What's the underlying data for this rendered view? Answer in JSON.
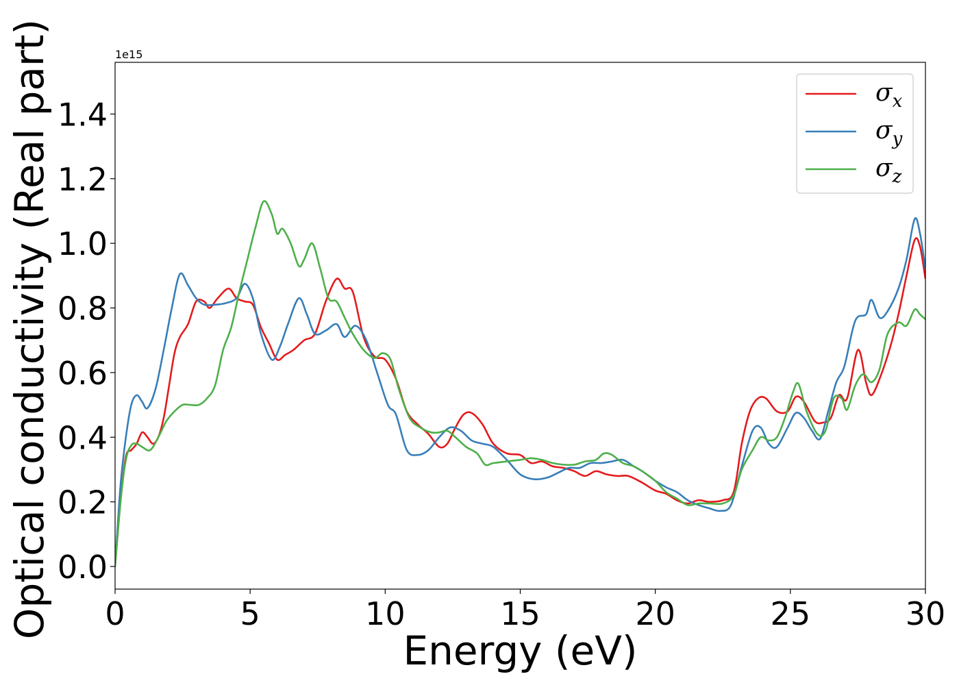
{
  "chart_data": {
    "type": "line",
    "xlabel": "Energy (eV)",
    "ylabel": "Optical conductivity (Real part)",
    "y_offset_text": "1e15",
    "y_scale": 1000000000000000.0,
    "xlim": [
      0,
      30
    ],
    "ylim": [
      -0.07,
      1.56
    ],
    "x_ticks": [
      0,
      5,
      10,
      15,
      20,
      25,
      30
    ],
    "x_tick_labels": [
      "0",
      "5",
      "10",
      "15",
      "20",
      "25",
      "30"
    ],
    "y_ticks": [
      0.0,
      0.2,
      0.4,
      0.6,
      0.8,
      1.0,
      1.2,
      1.4
    ],
    "y_tick_labels": [
      "0.0",
      "0.2",
      "0.4",
      "0.6",
      "0.8",
      "1.0",
      "1.2",
      "1.4"
    ],
    "grid": false,
    "legend_position": "top-right",
    "series": [
      {
        "name": "x",
        "color": "#e41a1c",
        "points": [
          [
            0,
            0.0
          ],
          [
            0.2,
            0.2
          ],
          [
            0.4,
            0.34
          ],
          [
            0.6,
            0.36
          ],
          [
            0.8,
            0.38
          ],
          [
            1.0,
            0.415
          ],
          [
            1.2,
            0.4
          ],
          [
            1.4,
            0.38
          ],
          [
            1.6,
            0.4
          ],
          [
            1.8,
            0.46
          ],
          [
            2.0,
            0.56
          ],
          [
            2.2,
            0.66
          ],
          [
            2.4,
            0.71
          ],
          [
            2.7,
            0.75
          ],
          [
            3.0,
            0.82
          ],
          [
            3.3,
            0.82
          ],
          [
            3.5,
            0.8
          ],
          [
            3.8,
            0.83
          ],
          [
            4.2,
            0.86
          ],
          [
            4.5,
            0.83
          ],
          [
            4.8,
            0.82
          ],
          [
            5.1,
            0.81
          ],
          [
            5.4,
            0.74
          ],
          [
            5.7,
            0.69
          ],
          [
            6.0,
            0.64
          ],
          [
            6.3,
            0.655
          ],
          [
            6.6,
            0.67
          ],
          [
            7.0,
            0.7
          ],
          [
            7.4,
            0.72
          ],
          [
            7.8,
            0.82
          ],
          [
            8.2,
            0.89
          ],
          [
            8.5,
            0.86
          ],
          [
            8.8,
            0.85
          ],
          [
            9.2,
            0.71
          ],
          [
            9.6,
            0.65
          ],
          [
            10.0,
            0.64
          ],
          [
            10.4,
            0.58
          ],
          [
            10.8,
            0.48
          ],
          [
            11.2,
            0.44
          ],
          [
            11.6,
            0.41
          ],
          [
            12.0,
            0.37
          ],
          [
            12.3,
            0.38
          ],
          [
            12.6,
            0.43
          ],
          [
            12.9,
            0.47
          ],
          [
            13.2,
            0.475
          ],
          [
            13.6,
            0.44
          ],
          [
            14.0,
            0.38
          ],
          [
            14.5,
            0.35
          ],
          [
            15.0,
            0.345
          ],
          [
            15.4,
            0.32
          ],
          [
            15.8,
            0.325
          ],
          [
            16.2,
            0.31
          ],
          [
            16.6,
            0.305
          ],
          [
            17.0,
            0.295
          ],
          [
            17.4,
            0.28
          ],
          [
            17.8,
            0.295
          ],
          [
            18.2,
            0.285
          ],
          [
            18.6,
            0.28
          ],
          [
            19.0,
            0.28
          ],
          [
            19.5,
            0.26
          ],
          [
            20.0,
            0.235
          ],
          [
            20.4,
            0.225
          ],
          [
            20.8,
            0.205
          ],
          [
            21.2,
            0.195
          ],
          [
            21.6,
            0.205
          ],
          [
            22.0,
            0.2
          ],
          [
            22.5,
            0.205
          ],
          [
            22.9,
            0.23
          ],
          [
            23.2,
            0.38
          ],
          [
            23.5,
            0.48
          ],
          [
            23.8,
            0.52
          ],
          [
            24.1,
            0.52
          ],
          [
            24.5,
            0.48
          ],
          [
            24.9,
            0.48
          ],
          [
            25.2,
            0.525
          ],
          [
            25.5,
            0.51
          ],
          [
            25.9,
            0.45
          ],
          [
            26.2,
            0.445
          ],
          [
            26.5,
            0.46
          ],
          [
            26.8,
            0.53
          ],
          [
            27.1,
            0.52
          ],
          [
            27.5,
            0.67
          ],
          [
            27.8,
            0.57
          ],
          [
            28.0,
            0.53
          ],
          [
            28.3,
            0.58
          ],
          [
            28.7,
            0.68
          ],
          [
            29.0,
            0.78
          ],
          [
            29.3,
            0.9
          ],
          [
            29.6,
            1.01
          ],
          [
            29.8,
            0.99
          ],
          [
            30.0,
            0.89
          ]
        ]
      },
      {
        "name": "y",
        "color": "#377eb8",
        "points": [
          [
            0,
            0.0
          ],
          [
            0.2,
            0.25
          ],
          [
            0.4,
            0.4
          ],
          [
            0.6,
            0.5
          ],
          [
            0.8,
            0.53
          ],
          [
            1.0,
            0.51
          ],
          [
            1.2,
            0.49
          ],
          [
            1.5,
            0.55
          ],
          [
            1.8,
            0.67
          ],
          [
            2.1,
            0.8
          ],
          [
            2.4,
            0.905
          ],
          [
            2.7,
            0.87
          ],
          [
            3.0,
            0.83
          ],
          [
            3.3,
            0.81
          ],
          [
            3.7,
            0.81
          ],
          [
            4.1,
            0.815
          ],
          [
            4.5,
            0.83
          ],
          [
            4.8,
            0.875
          ],
          [
            5.1,
            0.83
          ],
          [
            5.4,
            0.72
          ],
          [
            5.8,
            0.64
          ],
          [
            6.1,
            0.68
          ],
          [
            6.4,
            0.75
          ],
          [
            6.8,
            0.83
          ],
          [
            7.1,
            0.78
          ],
          [
            7.4,
            0.72
          ],
          [
            7.8,
            0.73
          ],
          [
            8.2,
            0.75
          ],
          [
            8.5,
            0.71
          ],
          [
            8.9,
            0.745
          ],
          [
            9.3,
            0.7
          ],
          [
            9.7,
            0.6
          ],
          [
            10.1,
            0.5
          ],
          [
            10.4,
            0.47
          ],
          [
            10.8,
            0.36
          ],
          [
            11.2,
            0.345
          ],
          [
            11.6,
            0.36
          ],
          [
            12.0,
            0.4
          ],
          [
            12.4,
            0.43
          ],
          [
            12.8,
            0.42
          ],
          [
            13.2,
            0.39
          ],
          [
            13.6,
            0.38
          ],
          [
            14.0,
            0.37
          ],
          [
            14.5,
            0.33
          ],
          [
            15.0,
            0.285
          ],
          [
            15.5,
            0.27
          ],
          [
            16.0,
            0.275
          ],
          [
            16.4,
            0.29
          ],
          [
            16.8,
            0.305
          ],
          [
            17.2,
            0.305
          ],
          [
            17.6,
            0.32
          ],
          [
            18.0,
            0.32
          ],
          [
            18.4,
            0.325
          ],
          [
            18.8,
            0.33
          ],
          [
            19.2,
            0.31
          ],
          [
            19.6,
            0.29
          ],
          [
            20.0,
            0.265
          ],
          [
            20.4,
            0.245
          ],
          [
            20.8,
            0.23
          ],
          [
            21.2,
            0.205
          ],
          [
            21.6,
            0.19
          ],
          [
            22.0,
            0.18
          ],
          [
            22.4,
            0.172
          ],
          [
            22.8,
            0.19
          ],
          [
            23.2,
            0.31
          ],
          [
            23.6,
            0.42
          ],
          [
            23.9,
            0.43
          ],
          [
            24.2,
            0.38
          ],
          [
            24.5,
            0.37
          ],
          [
            24.9,
            0.43
          ],
          [
            25.2,
            0.475
          ],
          [
            25.5,
            0.46
          ],
          [
            25.8,
            0.42
          ],
          [
            26.1,
            0.395
          ],
          [
            26.4,
            0.48
          ],
          [
            26.7,
            0.57
          ],
          [
            27.0,
            0.62
          ],
          [
            27.4,
            0.76
          ],
          [
            27.8,
            0.78
          ],
          [
            28.0,
            0.825
          ],
          [
            28.3,
            0.77
          ],
          [
            28.6,
            0.79
          ],
          [
            29.0,
            0.86
          ],
          [
            29.3,
            0.95
          ],
          [
            29.6,
            1.075
          ],
          [
            29.8,
            1.03
          ],
          [
            30.0,
            0.92
          ]
        ]
      },
      {
        "name": "z",
        "color": "#4daf4a",
        "points": [
          [
            0,
            0.0
          ],
          [
            0.2,
            0.2
          ],
          [
            0.4,
            0.33
          ],
          [
            0.6,
            0.375
          ],
          [
            0.8,
            0.38
          ],
          [
            1.0,
            0.37
          ],
          [
            1.3,
            0.36
          ],
          [
            1.6,
            0.4
          ],
          [
            1.9,
            0.45
          ],
          [
            2.2,
            0.48
          ],
          [
            2.5,
            0.5
          ],
          [
            2.8,
            0.5
          ],
          [
            3.1,
            0.5
          ],
          [
            3.4,
            0.52
          ],
          [
            3.7,
            0.56
          ],
          [
            4.0,
            0.67
          ],
          [
            4.3,
            0.74
          ],
          [
            4.6,
            0.85
          ],
          [
            4.9,
            0.95
          ],
          [
            5.2,
            1.05
          ],
          [
            5.5,
            1.13
          ],
          [
            5.8,
            1.09
          ],
          [
            6.0,
            1.03
          ],
          [
            6.2,
            1.045
          ],
          [
            6.5,
            1.0
          ],
          [
            6.8,
            0.93
          ],
          [
            7.0,
            0.95
          ],
          [
            7.3,
            1.0
          ],
          [
            7.6,
            0.92
          ],
          [
            7.9,
            0.83
          ],
          [
            8.2,
            0.82
          ],
          [
            8.5,
            0.77
          ],
          [
            8.8,
            0.72
          ],
          [
            9.2,
            0.67
          ],
          [
            9.6,
            0.645
          ],
          [
            9.9,
            0.66
          ],
          [
            10.2,
            0.64
          ],
          [
            10.5,
            0.55
          ],
          [
            10.9,
            0.46
          ],
          [
            11.3,
            0.43
          ],
          [
            11.7,
            0.415
          ],
          [
            12.0,
            0.415
          ],
          [
            12.3,
            0.42
          ],
          [
            12.6,
            0.4
          ],
          [
            13.0,
            0.37
          ],
          [
            13.4,
            0.35
          ],
          [
            13.7,
            0.315
          ],
          [
            14.0,
            0.32
          ],
          [
            14.5,
            0.325
          ],
          [
            15.0,
            0.33
          ],
          [
            15.4,
            0.335
          ],
          [
            15.8,
            0.33
          ],
          [
            16.2,
            0.32
          ],
          [
            16.6,
            0.315
          ],
          [
            17.0,
            0.315
          ],
          [
            17.4,
            0.325
          ],
          [
            17.8,
            0.33
          ],
          [
            18.1,
            0.35
          ],
          [
            18.4,
            0.345
          ],
          [
            18.8,
            0.32
          ],
          [
            19.2,
            0.31
          ],
          [
            19.6,
            0.29
          ],
          [
            20.0,
            0.265
          ],
          [
            20.4,
            0.23
          ],
          [
            20.8,
            0.21
          ],
          [
            21.2,
            0.19
          ],
          [
            21.6,
            0.195
          ],
          [
            22.0,
            0.195
          ],
          [
            22.5,
            0.195
          ],
          [
            22.9,
            0.22
          ],
          [
            23.2,
            0.3
          ],
          [
            23.6,
            0.36
          ],
          [
            23.9,
            0.4
          ],
          [
            24.2,
            0.39
          ],
          [
            24.5,
            0.4
          ],
          [
            24.8,
            0.46
          ],
          [
            25.1,
            0.54
          ],
          [
            25.3,
            0.565
          ],
          [
            25.6,
            0.48
          ],
          [
            26.0,
            0.41
          ],
          [
            26.3,
            0.42
          ],
          [
            26.6,
            0.52
          ],
          [
            26.9,
            0.52
          ],
          [
            27.1,
            0.485
          ],
          [
            27.4,
            0.56
          ],
          [
            27.7,
            0.595
          ],
          [
            28.0,
            0.57
          ],
          [
            28.3,
            0.61
          ],
          [
            28.6,
            0.72
          ],
          [
            29.0,
            0.755
          ],
          [
            29.3,
            0.745
          ],
          [
            29.6,
            0.795
          ],
          [
            29.8,
            0.78
          ],
          [
            30.0,
            0.765
          ]
        ]
      }
    ]
  }
}
